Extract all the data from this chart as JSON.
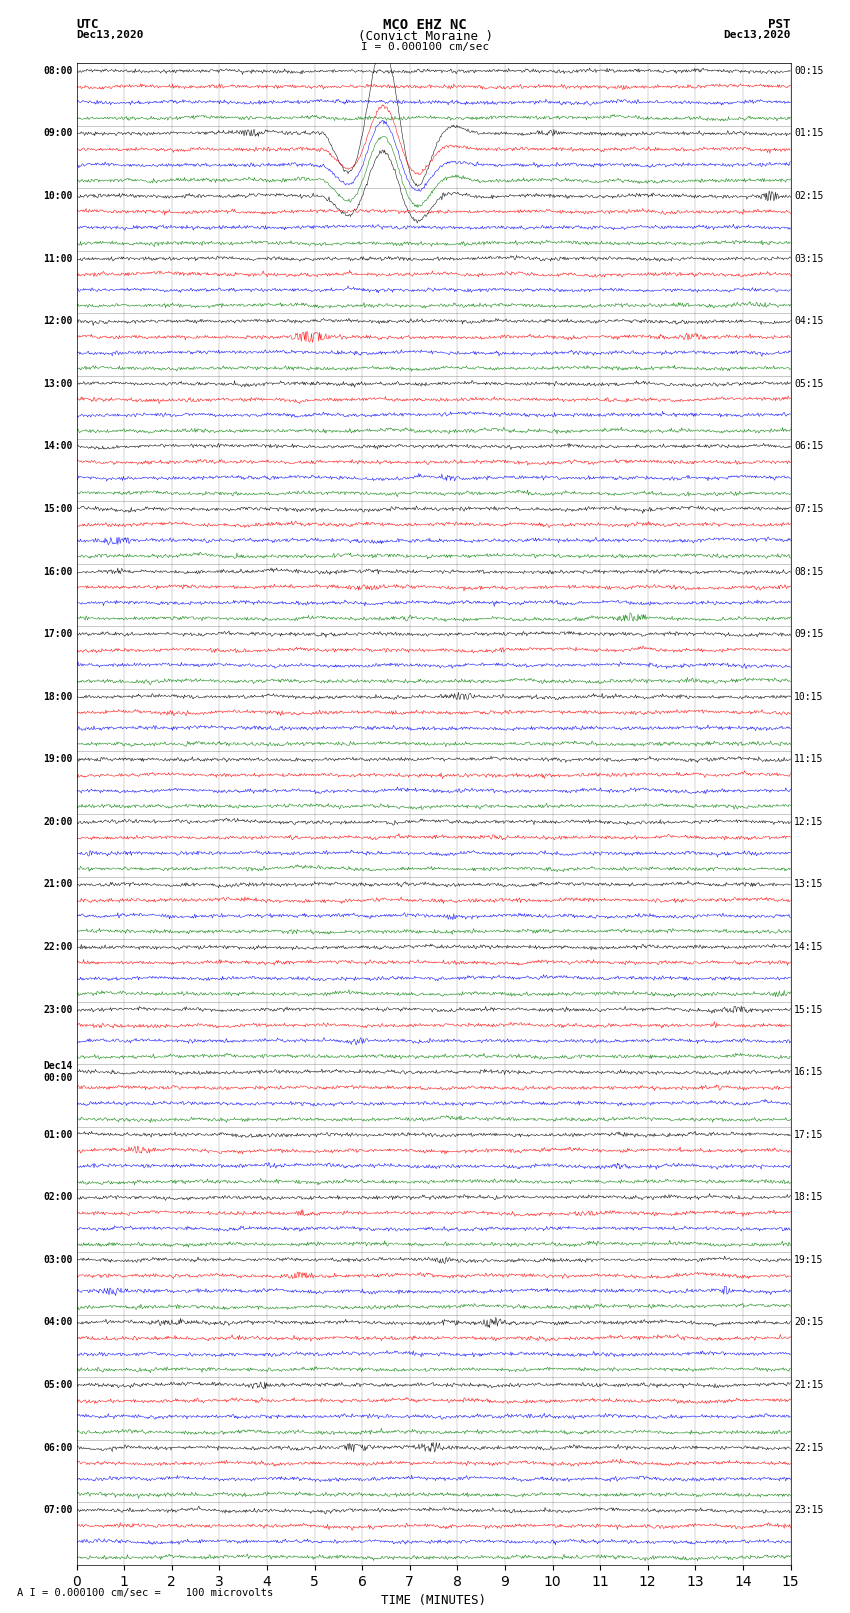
{
  "title_line1": "MCO EHZ NC",
  "title_line2": "(Convict Moraine )",
  "scale_text": "I = 0.000100 cm/sec",
  "footer_text": "A I = 0.000100 cm/sec =    100 microvolts",
  "left_header": "UTC\nDec13,2020",
  "right_header": "PST\nDec13,2020",
  "xlabel": "TIME (MINUTES)",
  "xlim": [
    0,
    15
  ],
  "xticks": [
    0,
    1,
    2,
    3,
    4,
    5,
    6,
    7,
    8,
    9,
    10,
    11,
    12,
    13,
    14,
    15
  ],
  "background_color": "#ffffff",
  "trace_colors": [
    "black",
    "red",
    "blue",
    "green"
  ],
  "left_times": [
    "08:00",
    "",
    "",
    "",
    "09:00",
    "",
    "",
    "",
    "10:00",
    "",
    "",
    "",
    "11:00",
    "",
    "",
    "",
    "12:00",
    "",
    "",
    "",
    "13:00",
    "",
    "",
    "",
    "14:00",
    "",
    "",
    "",
    "15:00",
    "",
    "",
    "",
    "16:00",
    "",
    "",
    "",
    "17:00",
    "",
    "",
    "",
    "18:00",
    "",
    "",
    "",
    "19:00",
    "",
    "",
    "",
    "20:00",
    "",
    "",
    "",
    "21:00",
    "",
    "",
    "",
    "22:00",
    "",
    "",
    "",
    "23:00",
    "",
    "",
    "",
    "Dec14\n00:00",
    "",
    "",
    "",
    "01:00",
    "",
    "",
    "",
    "02:00",
    "",
    "",
    "",
    "03:00",
    "",
    "",
    "",
    "04:00",
    "",
    "",
    "",
    "05:00",
    "",
    "",
    "",
    "06:00",
    "",
    "",
    "",
    "07:00",
    "",
    "",
    ""
  ],
  "right_times": [
    "00:15",
    "",
    "",
    "",
    "01:15",
    "",
    "",
    "",
    "02:15",
    "",
    "",
    "",
    "03:15",
    "",
    "",
    "",
    "04:15",
    "",
    "",
    "",
    "05:15",
    "",
    "",
    "",
    "06:15",
    "",
    "",
    "",
    "07:15",
    "",
    "",
    "",
    "08:15",
    "",
    "",
    "",
    "09:15",
    "",
    "",
    "",
    "10:15",
    "",
    "",
    "",
    "11:15",
    "",
    "",
    "",
    "12:15",
    "",
    "",
    "",
    "13:15",
    "",
    "",
    "",
    "14:15",
    "",
    "",
    "",
    "15:15",
    "",
    "",
    "",
    "16:15",
    "",
    "",
    "",
    "17:15",
    "",
    "",
    "",
    "18:15",
    "",
    "",
    "",
    "19:15",
    "",
    "",
    "",
    "20:15",
    "",
    "",
    "",
    "21:15",
    "",
    "",
    "",
    "22:15",
    "",
    "",
    "",
    "23:15",
    "",
    "",
    ""
  ],
  "n_rows": 96,
  "n_hours": 24,
  "traces_per_hour": 4,
  "amplitude_scale": 0.35,
  "seed": 42,
  "big_event_row": 4,
  "big_event_col": 6.5,
  "big_event_amplitude": 8.0
}
